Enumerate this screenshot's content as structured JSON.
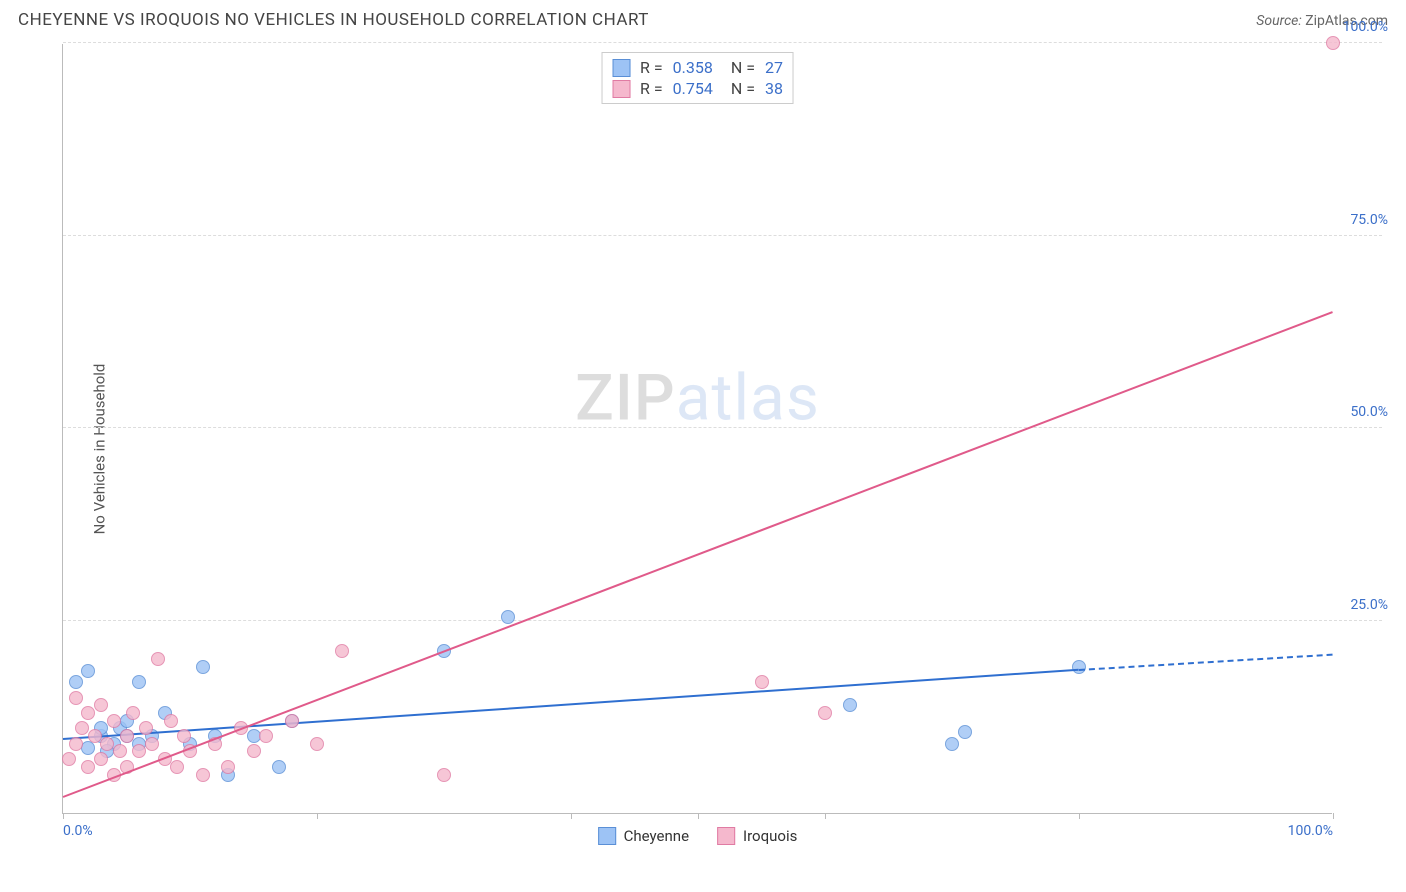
{
  "title": "CHEYENNE VS IROQUOIS NO VEHICLES IN HOUSEHOLD CORRELATION CHART",
  "source_label": "Source:",
  "source_value": "ZipAtlas.com",
  "ylabel": "No Vehicles in Household",
  "watermark": {
    "part1": "ZIP",
    "part2": "atlas"
  },
  "chart": {
    "type": "scatter",
    "xlim": [
      0,
      100
    ],
    "ylim": [
      0,
      100
    ],
    "xtick_positions": [
      0,
      20,
      40,
      50,
      60,
      80,
      100
    ],
    "xtick_labels": {
      "0": "0.0%",
      "100": "100.0%"
    },
    "xtick_label_color": "#3b6fc9",
    "ytick_positions": [
      25,
      50,
      75,
      100
    ],
    "ytick_labels": {
      "25": "25.0%",
      "50": "50.0%",
      "75": "75.0%",
      "100": "100.0%"
    },
    "ytick_label_color": "#3b6fc9",
    "grid_color": "#dddddd",
    "axis_color": "#bbbbbb",
    "background_color": "#ffffff",
    "marker_radius": 7,
    "marker_fill_opacity": 0.35,
    "marker_stroke_width": 1,
    "series": [
      {
        "name": "Cheyenne",
        "color_fill": "#9dc3f5",
        "color_stroke": "#5a8fd6",
        "trend_color": "#2f6fd0",
        "R": "0.358",
        "N": "27",
        "trend": {
          "x1": 0,
          "y1": 9.5,
          "x2": 80,
          "y2": 18.5,
          "extend_to_x": 100,
          "extend_y": 20.5
        },
        "points": [
          [
            1,
            17
          ],
          [
            2,
            18.5
          ],
          [
            3,
            10
          ],
          [
            3,
            11
          ],
          [
            4,
            9
          ],
          [
            4.5,
            11
          ],
          [
            5,
            10
          ],
          [
            6,
            17
          ],
          [
            2,
            8.5
          ],
          [
            3.5,
            8
          ],
          [
            5,
            12
          ],
          [
            6,
            9
          ],
          [
            7,
            10
          ],
          [
            8,
            13
          ],
          [
            10,
            9
          ],
          [
            11,
            19
          ],
          [
            12,
            10
          ],
          [
            13,
            5
          ],
          [
            15,
            10
          ],
          [
            17,
            6
          ],
          [
            18,
            12
          ],
          [
            30,
            21
          ],
          [
            35,
            25.5
          ],
          [
            62,
            14
          ],
          [
            70,
            9
          ],
          [
            71,
            10.5
          ],
          [
            80,
            19
          ]
        ]
      },
      {
        "name": "Iroquois",
        "color_fill": "#f5b8cd",
        "color_stroke": "#e07ba3",
        "trend_color": "#e05a8a",
        "R": "0.754",
        "N": "38",
        "trend": {
          "x1": 0,
          "y1": 2,
          "x2": 100,
          "y2": 65
        },
        "points": [
          [
            0.5,
            7
          ],
          [
            1,
            15
          ],
          [
            1,
            9
          ],
          [
            1.5,
            11
          ],
          [
            2,
            13
          ],
          [
            2,
            6
          ],
          [
            2.5,
            10
          ],
          [
            3,
            14
          ],
          [
            3,
            7
          ],
          [
            3.5,
            9
          ],
          [
            4,
            12
          ],
          [
            4,
            5
          ],
          [
            4.5,
            8
          ],
          [
            5,
            10
          ],
          [
            5,
            6
          ],
          [
            5.5,
            13
          ],
          [
            6,
            8
          ],
          [
            6.5,
            11
          ],
          [
            7,
            9
          ],
          [
            7.5,
            20
          ],
          [
            8,
            7
          ],
          [
            8.5,
            12
          ],
          [
            9,
            6
          ],
          [
            9.5,
            10
          ],
          [
            10,
            8
          ],
          [
            11,
            5
          ],
          [
            12,
            9
          ],
          [
            13,
            6
          ],
          [
            14,
            11
          ],
          [
            15,
            8
          ],
          [
            16,
            10
          ],
          [
            18,
            12
          ],
          [
            20,
            9
          ],
          [
            22,
            21
          ],
          [
            30,
            5
          ],
          [
            55,
            17
          ],
          [
            60,
            13
          ],
          [
            100,
            100
          ]
        ]
      }
    ],
    "bottom_legend": [
      {
        "label": "Cheyenne",
        "fill": "#9dc3f5",
        "stroke": "#5a8fd6"
      },
      {
        "label": "Iroquois",
        "fill": "#f5b8cd",
        "stroke": "#e07ba3"
      }
    ]
  }
}
